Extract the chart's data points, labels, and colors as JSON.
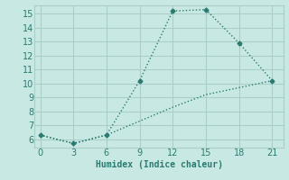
{
  "xlabel": "Humidex (Indice chaleur)",
  "x": [
    0,
    3,
    6,
    9,
    12,
    15,
    18,
    21
  ],
  "line1_y": [
    6.3,
    5.7,
    6.3,
    10.2,
    15.2,
    15.3,
    12.9,
    10.2
  ],
  "line2_y": [
    6.3,
    5.7,
    6.3,
    7.3,
    8.3,
    9.2,
    9.7,
    10.2
  ],
  "line_color": "#2a7a70",
  "bg_color": "#c8e8e4",
  "grid_color": "#aacec8",
  "ylim": [
    5.4,
    15.6
  ],
  "xlim": [
    -0.5,
    22
  ],
  "yticks": [
    6,
    7,
    8,
    9,
    10,
    11,
    12,
    13,
    14,
    15
  ],
  "xticks": [
    0,
    3,
    6,
    9,
    12,
    15,
    18,
    21
  ],
  "axis_fontsize": 7,
  "tick_fontsize": 7
}
